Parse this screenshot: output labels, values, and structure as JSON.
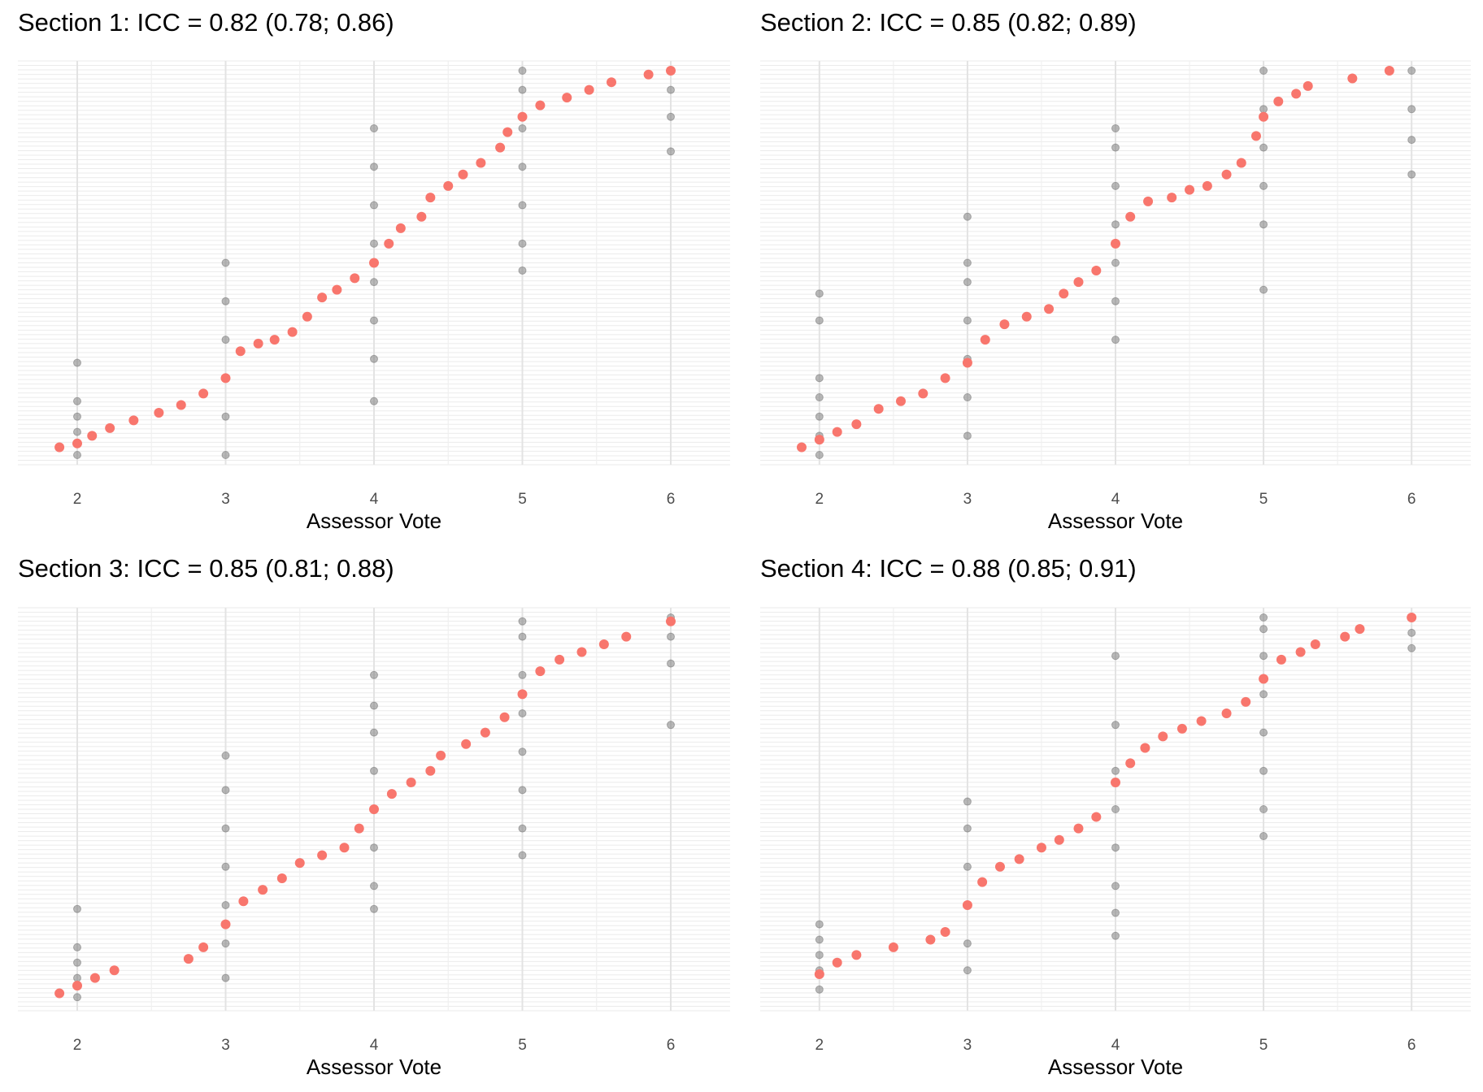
{
  "chart_data": [
    {
      "type": "scatter",
      "title": "Section 1: ICC = 0.82 (0.78; 0.86)",
      "xlabel": "Assessor Vote",
      "ylabel": "",
      "x_ticks": [
        "2",
        "3",
        "4",
        "5",
        "6"
      ],
      "xlim": [
        1.6,
        6.4
      ],
      "ylim": [
        0,
        1
      ],
      "y_tick_labels": "none",
      "grid": true,
      "series": [
        {
          "color": "#F8766D",
          "points": [
            [
              1.88,
              0.02
            ],
            [
              2.0,
              0.03
            ],
            [
              2.1,
              0.05
            ],
            [
              2.22,
              0.07
            ],
            [
              2.38,
              0.09
            ],
            [
              2.55,
              0.11
            ],
            [
              2.7,
              0.13
            ],
            [
              2.85,
              0.16
            ],
            [
              3.0,
              0.2
            ],
            [
              3.1,
              0.27
            ],
            [
              3.22,
              0.29
            ],
            [
              3.33,
              0.3
            ],
            [
              3.45,
              0.32
            ],
            [
              3.55,
              0.36
            ],
            [
              3.65,
              0.41
            ],
            [
              3.75,
              0.43
            ],
            [
              3.87,
              0.46
            ],
            [
              4.0,
              0.5
            ],
            [
              4.1,
              0.55
            ],
            [
              4.18,
              0.59
            ],
            [
              4.32,
              0.62
            ],
            [
              4.38,
              0.67
            ],
            [
              4.5,
              0.7
            ],
            [
              4.6,
              0.73
            ],
            [
              4.72,
              0.76
            ],
            [
              4.85,
              0.8
            ],
            [
              4.9,
              0.84
            ],
            [
              5.0,
              0.88
            ],
            [
              5.12,
              0.91
            ],
            [
              5.3,
              0.93
            ],
            [
              5.45,
              0.95
            ],
            [
              5.6,
              0.97
            ],
            [
              5.85,
              0.99
            ],
            [
              6.0,
              1.0
            ]
          ]
        },
        {
          "color": "#808080",
          "points": [
            [
              2.0,
              0.0
            ],
            [
              2.0,
              0.06
            ],
            [
              2.0,
              0.1
            ],
            [
              2.0,
              0.14
            ],
            [
              2.0,
              0.24
            ],
            [
              3.0,
              0.0
            ],
            [
              3.0,
              0.1
            ],
            [
              3.0,
              0.2
            ],
            [
              3.0,
              0.3
            ],
            [
              3.0,
              0.4
            ],
            [
              3.0,
              0.5
            ],
            [
              4.0,
              0.14
            ],
            [
              4.0,
              0.25
            ],
            [
              4.0,
              0.35
            ],
            [
              4.0,
              0.45
            ],
            [
              4.0,
              0.55
            ],
            [
              4.0,
              0.65
            ],
            [
              4.0,
              0.75
            ],
            [
              4.0,
              0.85
            ],
            [
              5.0,
              0.48
            ],
            [
              5.0,
              0.55
            ],
            [
              5.0,
              0.65
            ],
            [
              5.0,
              0.75
            ],
            [
              5.0,
              0.85
            ],
            [
              5.0,
              0.95
            ],
            [
              5.0,
              1.0
            ],
            [
              6.0,
              0.79
            ],
            [
              6.0,
              0.88
            ],
            [
              6.0,
              0.95
            ],
            [
              6.0,
              1.0
            ]
          ]
        }
      ]
    },
    {
      "type": "scatter",
      "title": "Section 2: ICC = 0.85 (0.82; 0.89)",
      "xlabel": "Assessor Vote",
      "ylabel": "",
      "x_ticks": [
        "2",
        "3",
        "4",
        "5",
        "6"
      ],
      "xlim": [
        1.6,
        6.4
      ],
      "ylim": [
        0,
        1
      ],
      "y_tick_labels": "none",
      "grid": true,
      "series": [
        {
          "color": "#F8766D",
          "points": [
            [
              1.88,
              0.02
            ],
            [
              2.0,
              0.04
            ],
            [
              2.12,
              0.06
            ],
            [
              2.25,
              0.08
            ],
            [
              2.4,
              0.12
            ],
            [
              2.55,
              0.14
            ],
            [
              2.7,
              0.16
            ],
            [
              2.85,
              0.2
            ],
            [
              3.0,
              0.24
            ],
            [
              3.12,
              0.3
            ],
            [
              3.25,
              0.34
            ],
            [
              3.4,
              0.36
            ],
            [
              3.55,
              0.38
            ],
            [
              3.65,
              0.42
            ],
            [
              3.75,
              0.45
            ],
            [
              3.87,
              0.48
            ],
            [
              4.0,
              0.55
            ],
            [
              4.1,
              0.62
            ],
            [
              4.22,
              0.66
            ],
            [
              4.38,
              0.67
            ],
            [
              4.5,
              0.69
            ],
            [
              4.62,
              0.7
            ],
            [
              4.75,
              0.73
            ],
            [
              4.85,
              0.76
            ],
            [
              4.95,
              0.83
            ],
            [
              5.0,
              0.88
            ],
            [
              5.1,
              0.92
            ],
            [
              5.22,
              0.94
            ],
            [
              5.3,
              0.96
            ],
            [
              5.6,
              0.98
            ],
            [
              5.85,
              1.0
            ]
          ]
        },
        {
          "color": "#808080",
          "points": [
            [
              2.0,
              0.0
            ],
            [
              2.0,
              0.05
            ],
            [
              2.0,
              0.1
            ],
            [
              2.0,
              0.15
            ],
            [
              2.0,
              0.2
            ],
            [
              2.0,
              0.35
            ],
            [
              2.0,
              0.42
            ],
            [
              3.0,
              0.05
            ],
            [
              3.0,
              0.15
            ],
            [
              3.0,
              0.25
            ],
            [
              3.0,
              0.35
            ],
            [
              3.0,
              0.45
            ],
            [
              3.0,
              0.5
            ],
            [
              3.0,
              0.62
            ],
            [
              4.0,
              0.3
            ],
            [
              4.0,
              0.4
            ],
            [
              4.0,
              0.5
            ],
            [
              4.0,
              0.6
            ],
            [
              4.0,
              0.7
            ],
            [
              4.0,
              0.8
            ],
            [
              4.0,
              0.85
            ],
            [
              5.0,
              0.43
            ],
            [
              5.0,
              0.6
            ],
            [
              5.0,
              0.7
            ],
            [
              5.0,
              0.8
            ],
            [
              5.0,
              0.9
            ],
            [
              5.0,
              1.0
            ],
            [
              6.0,
              0.73
            ],
            [
              6.0,
              0.82
            ],
            [
              6.0,
              0.9
            ],
            [
              6.0,
              1.0
            ]
          ]
        }
      ]
    },
    {
      "type": "scatter",
      "title": "Section 3: ICC = 0.85 (0.81; 0.88)",
      "xlabel": "Assessor Vote",
      "ylabel": "",
      "x_ticks": [
        "2",
        "3",
        "4",
        "5",
        "6"
      ],
      "xlim": [
        1.6,
        6.4
      ],
      "ylim": [
        0,
        1
      ],
      "y_tick_labels": "none",
      "grid": true,
      "series": [
        {
          "color": "#F8766D",
          "points": [
            [
              1.88,
              0.02
            ],
            [
              2.0,
              0.04
            ],
            [
              2.12,
              0.06
            ],
            [
              2.25,
              0.08
            ],
            [
              2.75,
              0.11
            ],
            [
              2.85,
              0.14
            ],
            [
              3.0,
              0.2
            ],
            [
              3.12,
              0.26
            ],
            [
              3.25,
              0.29
            ],
            [
              3.38,
              0.32
            ],
            [
              3.5,
              0.36
            ],
            [
              3.65,
              0.38
            ],
            [
              3.8,
              0.4
            ],
            [
              3.9,
              0.45
            ],
            [
              4.0,
              0.5
            ],
            [
              4.12,
              0.54
            ],
            [
              4.25,
              0.57
            ],
            [
              4.38,
              0.6
            ],
            [
              4.45,
              0.64
            ],
            [
              4.62,
              0.67
            ],
            [
              4.75,
              0.7
            ],
            [
              4.88,
              0.74
            ],
            [
              5.0,
              0.8
            ],
            [
              5.12,
              0.86
            ],
            [
              5.25,
              0.89
            ],
            [
              5.4,
              0.91
            ],
            [
              5.55,
              0.93
            ],
            [
              5.7,
              0.95
            ],
            [
              6.0,
              0.99
            ]
          ]
        },
        {
          "color": "#808080",
          "points": [
            [
              2.0,
              0.01
            ],
            [
              2.0,
              0.06
            ],
            [
              2.0,
              0.1
            ],
            [
              2.0,
              0.14
            ],
            [
              2.0,
              0.24
            ],
            [
              3.0,
              0.06
            ],
            [
              3.0,
              0.15
            ],
            [
              3.0,
              0.25
            ],
            [
              3.0,
              0.35
            ],
            [
              3.0,
              0.45
            ],
            [
              3.0,
              0.55
            ],
            [
              3.0,
              0.64
            ],
            [
              4.0,
              0.24
            ],
            [
              4.0,
              0.3
            ],
            [
              4.0,
              0.4
            ],
            [
              4.0,
              0.5
            ],
            [
              4.0,
              0.6
            ],
            [
              4.0,
              0.7
            ],
            [
              4.0,
              0.77
            ],
            [
              4.0,
              0.85
            ],
            [
              5.0,
              0.38
            ],
            [
              5.0,
              0.45
            ],
            [
              5.0,
              0.55
            ],
            [
              5.0,
              0.65
            ],
            [
              5.0,
              0.75
            ],
            [
              5.0,
              0.85
            ],
            [
              5.0,
              0.95
            ],
            [
              5.0,
              0.99
            ],
            [
              6.0,
              0.72
            ],
            [
              6.0,
              0.88
            ],
            [
              6.0,
              0.95
            ],
            [
              6.0,
              1.0
            ]
          ]
        }
      ]
    },
    {
      "type": "scatter",
      "title": "Section 4: ICC = 0.88 (0.85; 0.91)",
      "xlabel": "Assessor Vote",
      "ylabel": "",
      "x_ticks": [
        "2",
        "3",
        "4",
        "5",
        "6"
      ],
      "xlim": [
        1.6,
        6.4
      ],
      "ylim": [
        0,
        1
      ],
      "y_tick_labels": "none",
      "grid": true,
      "series": [
        {
          "color": "#F8766D",
          "points": [
            [
              2.0,
              0.07
            ],
            [
              2.12,
              0.1
            ],
            [
              2.25,
              0.12
            ],
            [
              2.5,
              0.14
            ],
            [
              2.75,
              0.16
            ],
            [
              2.85,
              0.18
            ],
            [
              3.0,
              0.25
            ],
            [
              3.1,
              0.31
            ],
            [
              3.22,
              0.35
            ],
            [
              3.35,
              0.37
            ],
            [
              3.5,
              0.4
            ],
            [
              3.62,
              0.42
            ],
            [
              3.75,
              0.45
            ],
            [
              3.87,
              0.48
            ],
            [
              4.0,
              0.57
            ],
            [
              4.1,
              0.62
            ],
            [
              4.2,
              0.66
            ],
            [
              4.32,
              0.69
            ],
            [
              4.45,
              0.71
            ],
            [
              4.58,
              0.73
            ],
            [
              4.75,
              0.75
            ],
            [
              4.88,
              0.78
            ],
            [
              5.0,
              0.84
            ],
            [
              5.12,
              0.89
            ],
            [
              5.25,
              0.91
            ],
            [
              5.35,
              0.93
            ],
            [
              5.55,
              0.95
            ],
            [
              5.65,
              0.97
            ],
            [
              6.0,
              1.0
            ]
          ]
        },
        {
          "color": "#808080",
          "points": [
            [
              2.0,
              0.03
            ],
            [
              2.0,
              0.08
            ],
            [
              2.0,
              0.12
            ],
            [
              2.0,
              0.16
            ],
            [
              2.0,
              0.2
            ],
            [
              3.0,
              0.08
            ],
            [
              3.0,
              0.15
            ],
            [
              3.0,
              0.25
            ],
            [
              3.0,
              0.35
            ],
            [
              3.0,
              0.45
            ],
            [
              3.0,
              0.52
            ],
            [
              4.0,
              0.17
            ],
            [
              4.0,
              0.23
            ],
            [
              4.0,
              0.3
            ],
            [
              4.0,
              0.4
            ],
            [
              4.0,
              0.5
            ],
            [
              4.0,
              0.6
            ],
            [
              4.0,
              0.72
            ],
            [
              4.0,
              0.9
            ],
            [
              5.0,
              0.43
            ],
            [
              5.0,
              0.5
            ],
            [
              5.0,
              0.6
            ],
            [
              5.0,
              0.7
            ],
            [
              5.0,
              0.8
            ],
            [
              5.0,
              0.9
            ],
            [
              5.0,
              0.97
            ],
            [
              5.0,
              1.0
            ],
            [
              6.0,
              0.92
            ],
            [
              6.0,
              0.96
            ],
            [
              6.0,
              1.0
            ]
          ]
        }
      ]
    }
  ]
}
